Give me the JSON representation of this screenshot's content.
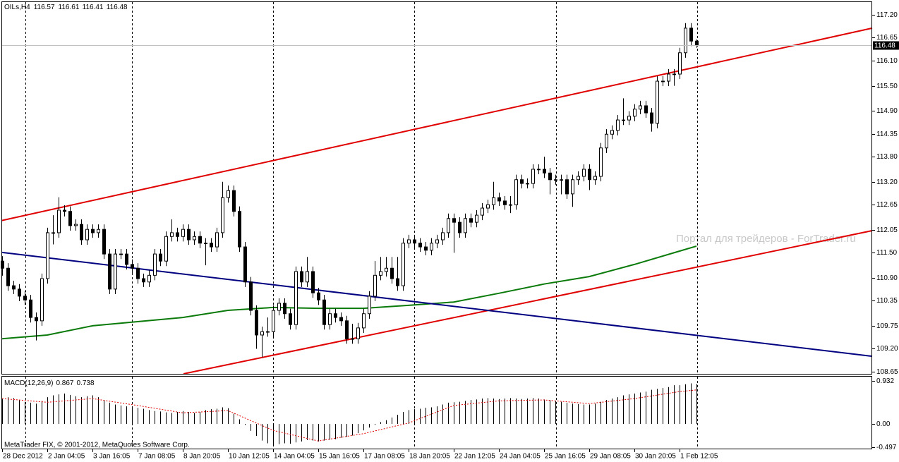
{
  "chart_data": [
    {
      "type": "candlestick",
      "title": "OILs,H4",
      "categories": [
        "28 Dec 2012",
        null,
        null,
        null,
        null,
        null,
        null,
        null,
        "2 Jan 04:05",
        null,
        null,
        null,
        null,
        null,
        null,
        null,
        "3 Jan 16:05",
        null,
        null,
        null,
        null,
        null,
        null,
        null,
        "7 Jan 08:05",
        null,
        null,
        null,
        null,
        null,
        null,
        null,
        "8 Jan 20:05",
        null,
        null,
        null,
        null,
        null,
        null,
        null,
        "10 Jan 12:05",
        null,
        null,
        null,
        null,
        null,
        null,
        null,
        "14 Jan 04:05",
        null,
        null,
        null,
        null,
        null,
        null,
        null,
        "15 Jan 16:05",
        null,
        null,
        null,
        null,
        null,
        null,
        null,
        "17 Jan 08:05",
        null,
        null,
        null,
        null,
        null,
        null,
        null,
        "18 Jan 20:05",
        null,
        null,
        null,
        null,
        null,
        null,
        null,
        "22 Jan 12:05",
        null,
        null,
        null,
        null,
        null,
        null,
        null,
        "24 Jan 04:05",
        null,
        null,
        null,
        null,
        null,
        null,
        null,
        "25 Jan 16:05",
        null,
        null,
        null,
        null,
        null,
        null,
        null,
        "29 Jan 08:05",
        null,
        null,
        null,
        null,
        null,
        null,
        null,
        "30 Jan 20:05",
        null,
        null,
        null,
        null,
        null,
        null,
        null,
        "1 Feb 12:05",
        null,
        null,
        null
      ],
      "open": [
        111.3,
        111.13,
        110.71,
        110.63,
        110.46,
        110.37,
        109.95,
        109.87,
        110.88,
        111.98,
        111.98,
        112.52,
        112.49,
        112.15,
        112.18,
        111.81,
        112.06,
        111.98,
        112.06,
        111.47,
        110.63,
        111.47,
        111.47,
        111.22,
        111.13,
        110.88,
        110.8,
        110.96,
        111.47,
        111.3,
        111.89,
        111.98,
        111.89,
        112.06,
        111.81,
        111.89,
        111.73,
        111.73,
        111.64,
        111.98,
        112.82,
        112.99,
        112.49,
        111.64,
        110.8,
        110.12,
        109.53,
        109.61,
        109.61,
        110.12,
        110.29,
        110.04,
        109.78,
        111.05,
        110.8,
        111.05,
        110.54,
        110.37,
        109.78,
        110.04,
        109.95,
        109.87,
        109.44,
        109.44,
        109.7,
        110.04,
        110.46,
        110.96,
        111.05,
        111.13,
        110.88,
        110.71,
        111.73,
        111.81,
        111.73,
        111.64,
        111.56,
        111.73,
        111.81,
        111.98,
        112.32,
        112.23,
        111.98,
        112.32,
        112.23,
        112.4,
        112.57,
        112.65,
        112.82,
        112.74,
        112.65,
        112.65,
        113.25,
        113.16,
        113.16,
        113.5,
        113.5,
        113.41,
        113.25,
        113.25,
        113.25,
        112.91,
        113.25,
        113.33,
        113.5,
        113.25,
        113.33,
        114.01,
        114.34,
        114.43,
        114.68,
        114.68,
        114.77,
        114.94,
        115.02,
        114.85,
        114.6,
        115.61,
        115.61,
        115.78,
        115.78,
        116.29,
        116.88,
        116.57
      ],
      "high": [
        111.42,
        111.25,
        110.83,
        110.75,
        110.58,
        110.49,
        110.07,
        111.0,
        112.1,
        112.4,
        112.83,
        112.64,
        112.61,
        112.3,
        112.3,
        112.18,
        112.18,
        112.18,
        112.18,
        111.59,
        111.59,
        111.59,
        111.59,
        111.34,
        111.25,
        111.0,
        111.08,
        111.59,
        111.59,
        112.01,
        112.3,
        112.1,
        112.18,
        112.18,
        112.01,
        112.01,
        111.85,
        111.85,
        112.1,
        113.2,
        113.11,
        113.11,
        112.61,
        111.76,
        110.92,
        110.24,
        109.73,
        109.95,
        110.24,
        110.41,
        110.41,
        110.16,
        111.17,
        111.17,
        111.4,
        111.17,
        110.66,
        110.49,
        110.16,
        110.16,
        110.07,
        109.99,
        109.8,
        109.82,
        110.16,
        110.58,
        111.3,
        111.4,
        111.4,
        111.4,
        111.4,
        111.85,
        111.93,
        111.93,
        111.85,
        111.76,
        111.85,
        111.93,
        112.1,
        112.44,
        112.44,
        112.35,
        112.44,
        112.44,
        112.52,
        112.69,
        112.77,
        113.2,
        112.94,
        112.86,
        112.86,
        113.37,
        113.37,
        113.28,
        113.62,
        113.62,
        113.8,
        113.53,
        113.37,
        113.37,
        113.37,
        113.37,
        113.45,
        113.62,
        113.62,
        113.45,
        114.13,
        114.46,
        114.55,
        114.8,
        115.2,
        114.89,
        115.06,
        115.14,
        115.14,
        114.97,
        115.73,
        115.73,
        115.9,
        115.9,
        116.41,
        117.0,
        117.0,
        116.61
      ],
      "low": [
        110.95,
        110.59,
        110.51,
        110.34,
        110.25,
        109.83,
        109.4,
        109.75,
        110.76,
        111.7,
        111.86,
        112.37,
        112.03,
        112.03,
        111.69,
        111.69,
        111.86,
        111.86,
        111.35,
        110.51,
        110.51,
        111.35,
        111.1,
        111.01,
        110.76,
        110.68,
        110.68,
        110.84,
        111.18,
        111.18,
        111.77,
        111.77,
        111.77,
        111.69,
        111.69,
        111.61,
        111.2,
        111.52,
        111.52,
        111.86,
        112.7,
        112.37,
        111.52,
        110.68,
        110.0,
        109.2,
        109.0,
        109.49,
        109.49,
        110.0,
        109.92,
        109.66,
        109.66,
        110.68,
        110.68,
        110.42,
        110.25,
        109.66,
        109.66,
        109.83,
        109.75,
        109.32,
        109.32,
        109.32,
        109.58,
        109.92,
        110.34,
        110.84,
        110.93,
        110.76,
        110.59,
        110.59,
        111.61,
        111.61,
        111.52,
        111.44,
        111.44,
        111.61,
        111.69,
        111.86,
        111.5,
        111.86,
        111.86,
        112.11,
        112.11,
        112.28,
        112.45,
        112.53,
        112.62,
        112.53,
        112.45,
        112.53,
        113.04,
        113.04,
        113.04,
        113.38,
        113.29,
        112.9,
        113.13,
        112.9,
        112.79,
        112.6,
        113.13,
        113.21,
        113.0,
        113.13,
        113.21,
        113.89,
        114.22,
        114.31,
        114.56,
        114.56,
        114.65,
        114.82,
        114.73,
        114.4,
        114.48,
        115.49,
        115.49,
        115.5,
        115.66,
        116.17,
        116.45,
        116.41
      ],
      "close": [
        111.13,
        110.71,
        110.63,
        110.46,
        110.37,
        109.95,
        109.87,
        110.88,
        111.98,
        111.98,
        112.52,
        112.49,
        112.15,
        112.18,
        111.81,
        112.06,
        111.98,
        112.06,
        111.47,
        110.63,
        111.47,
        111.47,
        111.22,
        111.13,
        110.88,
        110.8,
        110.96,
        111.47,
        111.3,
        111.89,
        111.98,
        111.89,
        112.06,
        111.81,
        111.89,
        111.73,
        111.73,
        111.64,
        111.98,
        112.82,
        112.99,
        112.49,
        111.64,
        110.8,
        110.12,
        109.53,
        109.61,
        109.61,
        110.12,
        110.29,
        110.04,
        109.78,
        111.05,
        110.8,
        111.05,
        110.54,
        110.37,
        109.78,
        110.04,
        109.95,
        109.87,
        109.44,
        109.44,
        109.7,
        110.04,
        110.46,
        110.96,
        111.05,
        111.13,
        110.88,
        110.71,
        111.73,
        111.81,
        111.73,
        111.64,
        111.56,
        111.73,
        111.81,
        111.98,
        112.32,
        112.23,
        111.98,
        112.32,
        112.23,
        112.4,
        112.57,
        112.65,
        112.82,
        112.74,
        112.65,
        112.65,
        113.25,
        113.16,
        113.16,
        113.5,
        113.5,
        113.41,
        113.25,
        113.25,
        113.25,
        112.91,
        113.25,
        113.33,
        113.5,
        113.25,
        113.33,
        114.01,
        114.34,
        114.43,
        114.68,
        114.68,
        114.77,
        114.94,
        115.02,
        114.85,
        114.6,
        115.61,
        115.61,
        115.78,
        115.78,
        116.29,
        116.88,
        116.57,
        116.48
      ],
      "up_color": "#ffffff",
      "down_color": "#000000",
      "edge_color": "#000000",
      "xlim": [
        -0.125,
        154.125
      ],
      "ylim": [
        108.6,
        117.52
      ],
      "yticks": [
        {
          "value": 117.2,
          "label": "117.20"
        },
        116.65,
        {
          "value": 116.1,
          "label": "116.10"
        },
        {
          "value": 115.5,
          "label": "115.50"
        },
        {
          "value": 114.9,
          "label": "114.90"
        },
        114.35,
        {
          "value": 113.8,
          "label": "113.80"
        },
        {
          "value": 113.2,
          "label": "113.20"
        },
        112.65,
        112.05,
        {
          "value": 111.5,
          "label": "111.50"
        },
        {
          "value": 110.9,
          "label": "110.90"
        },
        110.35,
        109.75,
        {
          "value": 109.2,
          "label": "109.20"
        },
        108.65
      ],
      "grid": false,
      "trend_lines": [
        {
          "color": "#e00000",
          "x": [
            -0.125,
            154.125
          ],
          "values": [
            112.27,
            116.88
          ]
        },
        {
          "color": "#e00000",
          "x": [
            32.125,
            154.125
          ],
          "values": [
            108.6,
            112.03
          ]
        },
        {
          "color": "#000080",
          "x": [
            -0.125,
            154.125
          ],
          "values": [
            111.51,
            109.02
          ]
        }
      ],
      "series": [
        {
          "color": "#0a7a0a",
          "x": [
            0,
            8,
            16,
            24,
            32,
            40,
            48,
            56,
            64,
            72,
            80,
            88,
            96,
            104,
            112,
            120,
            123
          ],
          "values": [
            109.44,
            109.53,
            109.75,
            109.85,
            109.95,
            110.12,
            110.19,
            110.17,
            110.17,
            110.24,
            110.32,
            110.53,
            110.75,
            110.93,
            111.22,
            111.54,
            111.66
          ]
        }
      ]
    },
    {
      "type": "macd",
      "title": "MACD(12,26,9)",
      "values": [
        0.55,
        0.58,
        0.56,
        0.52,
        0.48,
        0.46,
        0.44,
        0.5,
        0.58,
        0.62,
        0.64,
        0.66,
        0.63,
        0.6,
        0.58,
        0.6,
        0.62,
        0.58,
        0.52,
        0.46,
        0.42,
        0.4,
        0.38,
        0.36,
        0.35,
        0.33,
        0.3,
        0.28,
        0.27,
        0.25,
        0.24,
        0.26,
        0.28,
        0.26,
        0.24,
        0.26,
        0.3,
        0.32,
        0.33,
        0.36,
        0.34,
        0.22,
        0.1,
        -0.02,
        -0.15,
        -0.26,
        -0.36,
        -0.42,
        -0.45,
        -0.44,
        -0.42,
        -0.43,
        -0.4,
        -0.38,
        -0.35,
        -0.36,
        -0.38,
        -0.36,
        -0.34,
        -0.33,
        -0.3,
        -0.28,
        -0.25,
        -0.2,
        -0.14,
        -0.08,
        -0.02,
        0.04,
        0.08,
        0.14,
        0.2,
        0.26,
        0.3,
        0.32,
        0.33,
        0.35,
        0.36,
        0.38,
        0.42,
        0.46,
        0.47,
        0.48,
        0.5,
        0.52,
        0.53,
        0.55,
        0.56,
        0.55,
        0.54,
        0.55,
        0.56,
        0.55,
        0.54,
        0.55,
        0.56,
        0.55,
        0.53,
        0.52,
        0.5,
        0.48,
        0.46,
        0.44,
        0.43,
        0.42,
        0.42,
        0.44,
        0.48,
        0.52,
        0.55,
        0.58,
        0.62,
        0.64,
        0.66,
        0.68,
        0.7,
        0.74,
        0.76,
        0.78,
        0.8,
        0.84,
        0.84,
        0.86,
        0.88,
        0.867
      ],
      "color": "#000000",
      "signal": {
        "color": "#e00000",
        "x": [
          0,
          8,
          16,
          24,
          32,
          40,
          48,
          56,
          64,
          72,
          80,
          88,
          96,
          104,
          112,
          120,
          123
        ],
        "values": [
          0.55,
          0.47,
          0.55,
          0.4,
          0.24,
          0.29,
          -0.14,
          -0.37,
          -0.21,
          0.02,
          0.4,
          0.5,
          0.52,
          0.44,
          0.55,
          0.7,
          0.738
        ]
      },
      "ylim": [
        -0.55,
        1.04
      ],
      "yticks": [
        0.932,
        {
          "value": 0,
          "label": "0.00"
        },
        -0.497
      ]
    }
  ],
  "watermark": "Портал для трейдеров - ForTrader.ru",
  "footer": "MetaTrader FIX, © 2001-2012, MetaQuotes Software Corp."
}
